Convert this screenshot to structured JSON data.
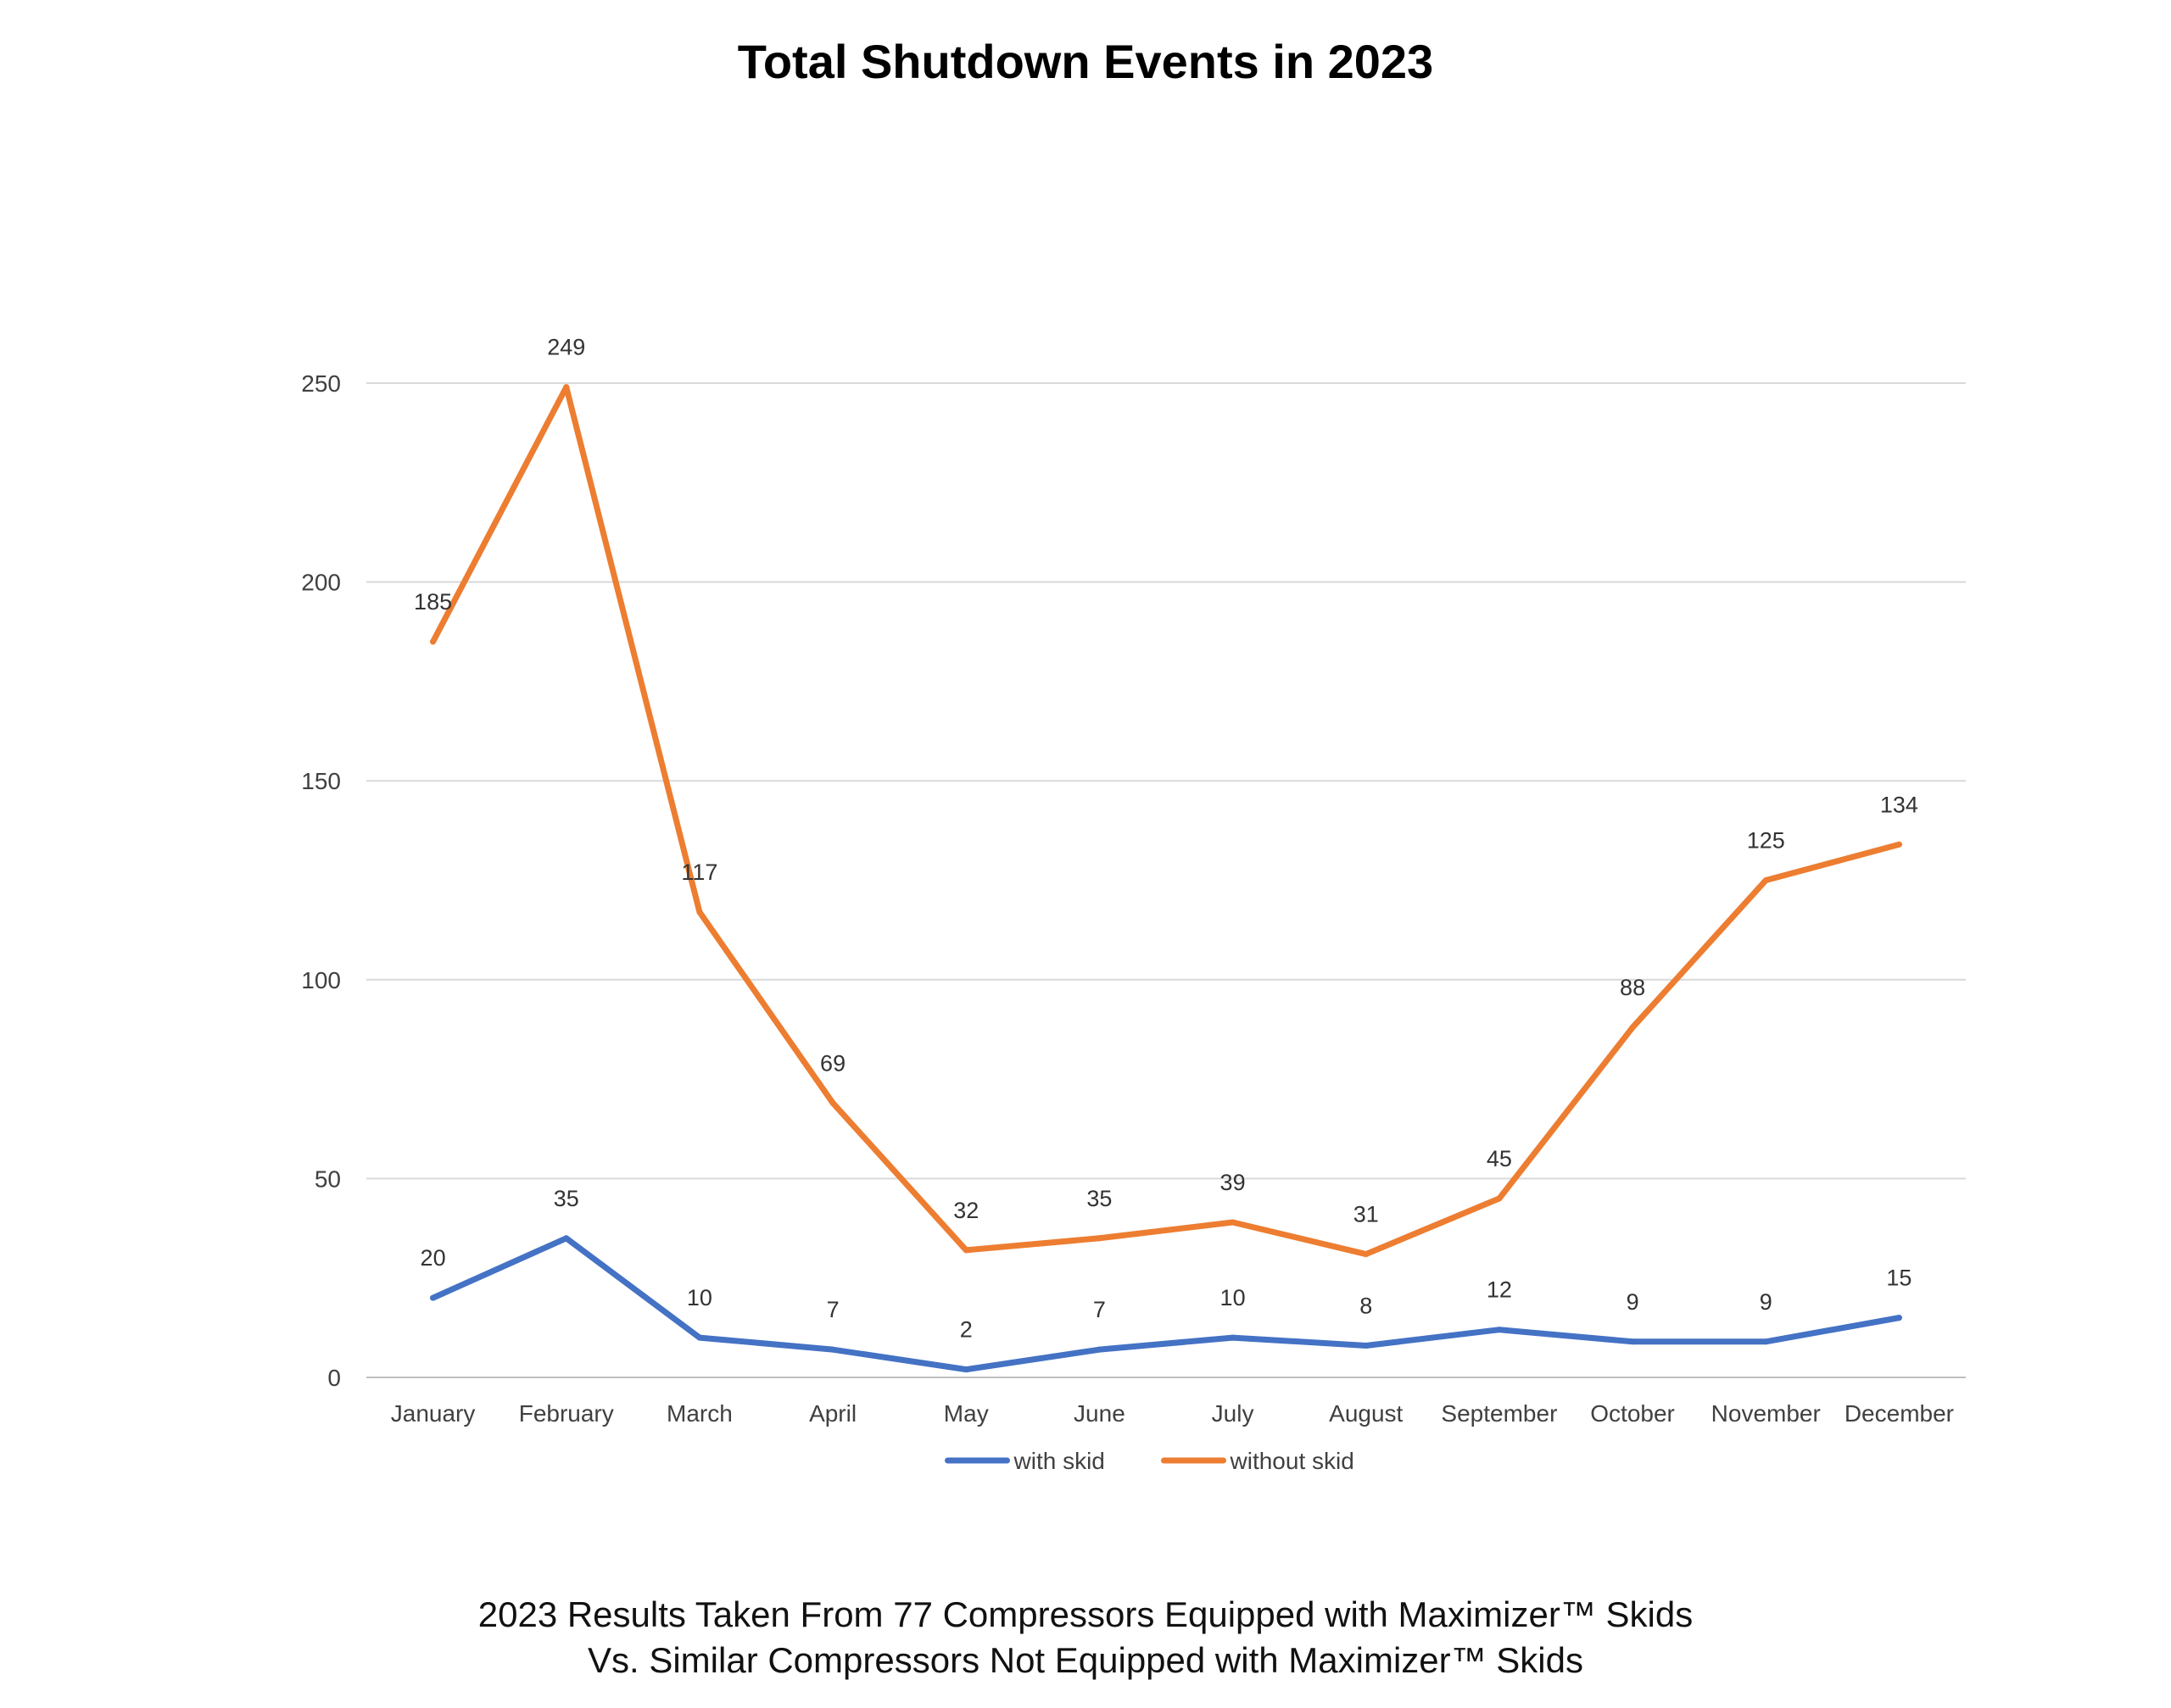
{
  "chart_data": {
    "type": "line",
    "title": "Total Shutdown Events in 2023",
    "categories": [
      "January",
      "February",
      "March",
      "April",
      "May",
      "June",
      "July",
      "August",
      "September",
      "October",
      "November",
      "December"
    ],
    "series": [
      {
        "name": "with skid",
        "color": "#4472C4",
        "values": [
          20,
          35,
          10,
          7,
          2,
          7,
          10,
          8,
          12,
          9,
          9,
          15
        ]
      },
      {
        "name": "without skid",
        "color": "#ED7D31",
        "values": [
          185,
          249,
          117,
          69,
          32,
          35,
          39,
          31,
          45,
          88,
          125,
          134
        ]
      }
    ],
    "yticks": [
      0,
      50,
      100,
      150,
      200,
      250
    ],
    "ylim": [
      0,
      250
    ],
    "grid": true,
    "legend": "bottom-center",
    "xlabel": "",
    "ylabel": ""
  },
  "caption": {
    "line1": "2023 Results Taken From 77 Compressors Equipped with Maximizer™ Skids",
    "line2": "Vs. Similar Compressors Not Equipped with Maximizer™ Skids"
  }
}
